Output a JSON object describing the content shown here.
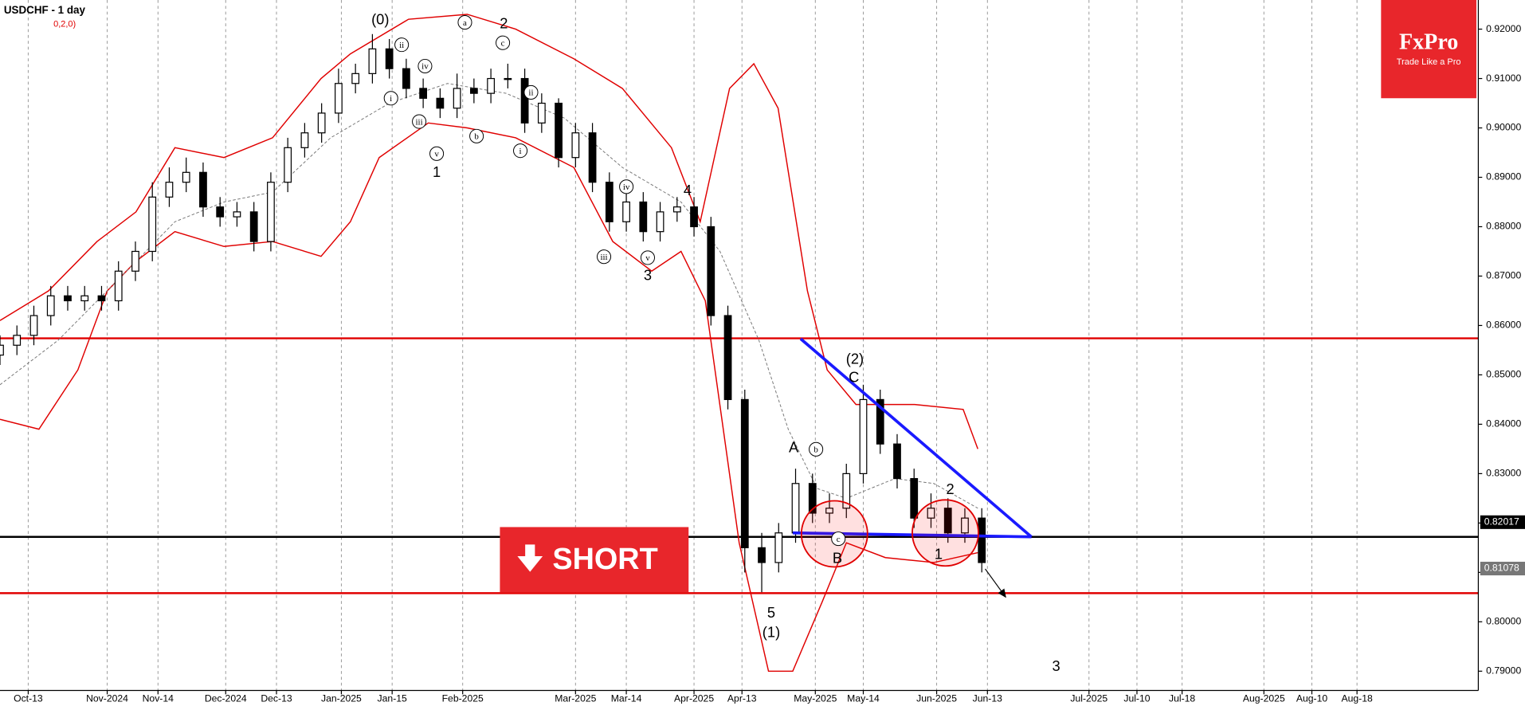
{
  "chart_data": {
    "type": "candlestick",
    "title": "USDCHF - 1 day",
    "subtitle": "0,2,0)",
    "x": [
      0,
      3,
      6,
      9,
      12,
      15,
      18,
      21,
      24,
      27,
      30,
      33,
      36,
      39,
      42,
      45,
      48,
      51,
      54,
      57,
      60,
      63,
      66,
      69,
      72,
      75,
      78,
      81,
      84,
      87,
      90,
      93,
      96,
      99,
      102,
      105,
      108,
      111,
      114,
      117,
      120,
      123,
      126,
      129,
      132,
      135,
      138,
      141,
      144,
      147,
      150,
      153,
      156,
      159,
      162,
      165,
      168,
      171,
      174
    ],
    "open": [
      0.854,
      0.856,
      0.858,
      0.862,
      0.866,
      0.865,
      0.866,
      0.865,
      0.871,
      0.875,
      0.886,
      0.889,
      0.891,
      0.884,
      0.882,
      0.883,
      0.877,
      0.889,
      0.896,
      0.899,
      0.903,
      0.909,
      0.911,
      0.916,
      0.912,
      0.908,
      0.906,
      0.904,
      0.908,
      0.907,
      0.91,
      0.91,
      0.901,
      0.905,
      0.894,
      0.899,
      0.889,
      0.881,
      0.885,
      0.879,
      0.883,
      0.884,
      0.88,
      0.862,
      0.845,
      0.815,
      0.812,
      0.818,
      0.828,
      0.822,
      0.823,
      0.83,
      0.845,
      0.836,
      0.829,
      0.821,
      0.823,
      0.818,
      0.821
    ],
    "high": [
      0.858,
      0.86,
      0.864,
      0.868,
      0.868,
      0.868,
      0.868,
      0.873,
      0.877,
      0.889,
      0.892,
      0.894,
      0.893,
      0.886,
      0.885,
      0.885,
      0.891,
      0.898,
      0.901,
      0.905,
      0.912,
      0.913,
      0.919,
      0.918,
      0.914,
      0.91,
      0.908,
      0.911,
      0.91,
      0.912,
      0.913,
      0.912,
      0.907,
      0.906,
      0.901,
      0.901,
      0.891,
      0.887,
      0.887,
      0.885,
      0.886,
      0.886,
      0.882,
      0.864,
      0.847,
      0.818,
      0.82,
      0.831,
      0.83,
      0.826,
      0.832,
      0.848,
      0.847,
      0.838,
      0.831,
      0.826,
      0.825,
      0.823,
      0.823
    ],
    "low": [
      0.852,
      0.854,
      0.856,
      0.86,
      0.863,
      0.863,
      0.863,
      0.863,
      0.869,
      0.873,
      0.884,
      0.887,
      0.882,
      0.88,
      0.88,
      0.875,
      0.875,
      0.887,
      0.894,
      0.897,
      0.901,
      0.907,
      0.909,
      0.91,
      0.906,
      0.904,
      0.902,
      0.902,
      0.905,
      0.905,
      0.908,
      0.899,
      0.899,
      0.892,
      0.892,
      0.887,
      0.879,
      0.879,
      0.877,
      0.877,
      0.881,
      0.878,
      0.86,
      0.843,
      0.81,
      0.806,
      0.81,
      0.816,
      0.82,
      0.82,
      0.821,
      0.828,
      0.834,
      0.827,
      0.819,
      0.819,
      0.816,
      0.816,
      0.81
    ],
    "close": [
      0.856,
      0.858,
      0.862,
      0.866,
      0.865,
      0.866,
      0.865,
      0.871,
      0.875,
      0.886,
      0.889,
      0.891,
      0.884,
      0.882,
      0.883,
      0.877,
      0.889,
      0.896,
      0.899,
      0.903,
      0.909,
      0.911,
      0.916,
      0.912,
      0.908,
      0.906,
      0.904,
      0.908,
      0.907,
      0.91,
      0.91,
      0.901,
      0.905,
      0.894,
      0.899,
      0.889,
      0.881,
      0.885,
      0.879,
      0.883,
      0.884,
      0.88,
      0.862,
      0.845,
      0.815,
      0.812,
      0.818,
      0.828,
      0.822,
      0.823,
      0.83,
      0.845,
      0.836,
      0.829,
      0.821,
      0.823,
      0.818,
      0.821,
      0.812
    ],
    "up_color": "#ffffff",
    "down_color": "#000000",
    "xlim": [
      0,
      262
    ],
    "xticks": [
      {
        "value": 5,
        "label": "Oct-13"
      },
      {
        "value": 19,
        "label": "Nov-2024"
      },
      {
        "value": 28,
        "label": "Nov-14"
      },
      {
        "value": 40,
        "label": "Dec-2024"
      },
      {
        "value": 49,
        "label": "Dec-13"
      },
      {
        "value": 60.5,
        "label": "Jan-2025"
      },
      {
        "value": 69.5,
        "label": "Jan-15"
      },
      {
        "value": 82,
        "label": "Feb-2025"
      },
      {
        "value": 102,
        "label": "Mar-2025"
      },
      {
        "value": 111,
        "label": "Mar-14"
      },
      {
        "value": 123,
        "label": "Apr-2025"
      },
      {
        "value": 131.5,
        "label": "Apr-13"
      },
      {
        "value": 144.5,
        "label": "May-2025"
      },
      {
        "value": 153,
        "label": "May-14"
      },
      {
        "value": 166,
        "label": "Jun-2025"
      },
      {
        "value": 175,
        "label": "Jun-13"
      },
      {
        "value": 193,
        "label": "Jul-2025"
      },
      {
        "value": 201.5,
        "label": "Jul-10"
      },
      {
        "value": 209.5,
        "label": "Jul-18"
      },
      {
        "value": 224,
        "label": "Aug-2025"
      },
      {
        "value": 232.5,
        "label": "Aug-10"
      },
      {
        "value": 240.5,
        "label": "Aug-18"
      }
    ],
    "ylim": [
      0.7861,
      0.9259
    ],
    "yticks": [
      {
        "value": 0.79,
        "label": "0.79000"
      },
      {
        "value": 0.8,
        "label": "0.80000"
      },
      {
        "value": 0.81,
        "label": "0.81000"
      },
      {
        "value": 0.82,
        "label": "0.82000"
      },
      {
        "value": 0.83,
        "label": "0.83000"
      },
      {
        "value": 0.84,
        "label": "0.84000"
      },
      {
        "value": 0.85,
        "label": "0.85000"
      },
      {
        "value": 0.86,
        "label": "0.86000"
      },
      {
        "value": 0.87,
        "label": "0.87000"
      },
      {
        "value": 0.88,
        "label": "0.88000"
      },
      {
        "value": 0.89,
        "label": "0.89000"
      },
      {
        "value": 0.9,
        "label": "0.90000"
      },
      {
        "value": 0.91,
        "label": "0.91000"
      },
      {
        "value": 0.92,
        "label": "0.92000"
      }
    ],
    "grid": true,
    "bands": [
      {
        "color": "#e00000",
        "dash": false,
        "x": [
          0,
          8.6,
          17.2,
          24.1,
          31,
          39.7,
          48.3,
          56.9,
          62.1,
          72.4,
          82.8,
          91.4,
          101.7,
          110.3,
          119,
          124.1,
          129.3,
          133.6,
          137.9,
          143.1,
          146.6,
          151.7,
          162.1,
          170.7,
          173.3
        ],
        "values": [
          0.861,
          0.867,
          0.877,
          0.883,
          0.896,
          0.894,
          0.898,
          0.91,
          0.915,
          0.922,
          0.923,
          0.92,
          0.914,
          0.908,
          0.896,
          0.881,
          0.908,
          0.913,
          0.904,
          0.867,
          0.851,
          0.844,
          0.844,
          0.843,
          0.835
        ]
      },
      {
        "color": "#e00000",
        "dash": false,
        "x": [
          0,
          6.9,
          13.8,
          19,
          24.1,
          31,
          39.7,
          48.3,
          56.9,
          62.1,
          67.2,
          75.9,
          82.8,
          91.4,
          101.7,
          108.6,
          115.5,
          120.7,
          125,
          131,
          136.2,
          140.5,
          145.7,
          150,
          156.9,
          165.5,
          173.3
        ],
        "values": [
          0.841,
          0.839,
          0.851,
          0.867,
          0.873,
          0.879,
          0.876,
          0.877,
          0.874,
          0.881,
          0.894,
          0.901,
          0.9,
          0.898,
          0.892,
          0.877,
          0.871,
          0.875,
          0.865,
          0.816,
          0.79,
          0.79,
          0.804,
          0.816,
          0.813,
          0.812,
          0.814
        ]
      },
      {
        "color": "#777777",
        "dash": true,
        "x": [
          0,
          10.3,
          20.7,
          31,
          39.7,
          48.3,
          58.6,
          69,
          79.3,
          89.7,
          100,
          110.3,
          120.7,
          127.6,
          134.5,
          139.7,
          144.8,
          150,
          158.6,
          165.5,
          173.3
        ],
        "values": [
          0.848,
          0.857,
          0.869,
          0.881,
          0.885,
          0.887,
          0.898,
          0.905,
          0.909,
          0.907,
          0.902,
          0.892,
          0.885,
          0.875,
          0.857,
          0.839,
          0.827,
          0.825,
          0.829,
          0.828,
          0.823
        ]
      }
    ],
    "levels": [
      {
        "value": 0.8574,
        "color": "#e00000"
      },
      {
        "value": 0.8172,
        "color": "#000000"
      },
      {
        "value": 0.8058,
        "color": "#e00000"
      }
    ],
    "price_labels": [
      {
        "value": 0.82017,
        "color": "#000000"
      },
      {
        "value": 0.81078,
        "color": "#777777"
      }
    ],
    "trendlines": [
      {
        "color": "#1a1aff",
        "x": [
          141.9,
          182.8
        ],
        "values": [
          0.8573,
          0.8172
        ]
      },
      {
        "color": "#1a1aff",
        "x": [
          140.5,
          182.8
        ],
        "values": [
          0.818,
          0.8172
        ]
      }
    ],
    "annotations": [
      {
        "text": "(0)",
        "circled": false
      },
      {
        "text": "a",
        "circled": true
      },
      {
        "text": "2",
        "circled": false
      },
      {
        "text": "c",
        "circled": true
      },
      {
        "text": "ii",
        "circled": true
      },
      {
        "text": "iv",
        "circled": true
      },
      {
        "text": "i",
        "circled": true
      },
      {
        "text": "iii",
        "circled": true
      },
      {
        "text": "v",
        "circled": true
      },
      {
        "text": "1",
        "circled": false
      },
      {
        "text": "b",
        "circled": true
      },
      {
        "text": "ii",
        "circled": true
      },
      {
        "text": "i",
        "circled": true
      },
      {
        "text": "iv",
        "circled": true
      },
      {
        "text": "iii",
        "circled": true
      },
      {
        "text": "v",
        "circled": true
      },
      {
        "text": "3",
        "circled": false
      },
      {
        "text": "4",
        "circled": false
      },
      {
        "text": "(2)",
        "circled": false
      },
      {
        "text": "C",
        "circled": false
      },
      {
        "text": "A",
        "circled": false
      },
      {
        "text": "b",
        "circled": true
      },
      {
        "text": "c",
        "circled": true
      },
      {
        "text": "B",
        "circled": false
      },
      {
        "text": "2",
        "circled": false
      },
      {
        "text": "1",
        "circled": false
      },
      {
        "text": "5",
        "circled": false
      },
      {
        "text": "(1)",
        "circled": false
      },
      {
        "text": "3",
        "circled": false
      }
    ],
    "signal": "SHORT"
  },
  "logo": {
    "name": "FxPro",
    "tagline": "Trade Like a Pro"
  }
}
